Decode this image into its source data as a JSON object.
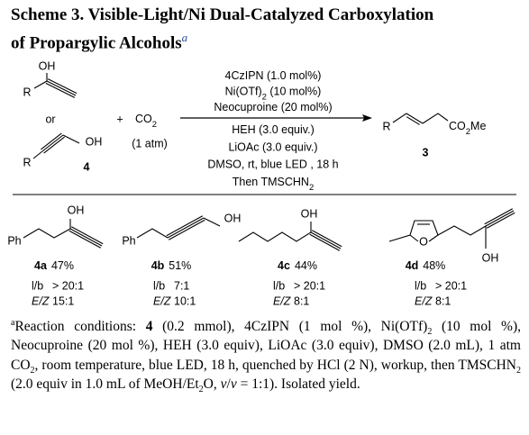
{
  "header": {
    "lines": [
      "Scheme 3. Visible-Light/Ni Dual-Catalyzed Carboxylation",
      "of Propargylic Alcohols"
    ],
    "note": "a"
  },
  "reaction": {
    "substrate_1": {
      "oh": "OH",
      "r": "R"
    },
    "or": "or",
    "substrate_2": {
      "oh": "OH",
      "r": "R",
      "label": "4"
    },
    "plus": "+",
    "co2": [
      "CO",
      {
        "text": "2",
        "style": "sub"
      }
    ],
    "pressure": "(1 atm)",
    "conditions_above": [
      [
        "4CzIPN (1.0 mol%)"
      ],
      [
        "Ni(OTf)",
        {
          "text": "2",
          "style": "sub"
        },
        " (10 mol%)"
      ],
      [
        "Neocuproine (20 mol%)"
      ]
    ],
    "conditions_below": [
      [
        "HEH (3.0 equiv.)"
      ],
      [
        "LiOAc (3.0 equiv.)"
      ],
      [
        "DMSO, rt, blue LED , 18 h"
      ],
      [
        "Then TMSCHN",
        {
          "text": "2",
          "style": "sub"
        }
      ]
    ],
    "product": {
      "r": "R",
      "ester": [
        "CO",
        {
          "text": "2",
          "style": "sub"
        },
        "Me"
      ],
      "label": "3"
    }
  },
  "products": [
    {
      "labels": [
        "OH",
        "Ph"
      ],
      "id": "4a",
      "yield": "47%",
      "lb_label": "l/b",
      "lb": "> 20:1",
      "ez_label": "E/Z",
      "ez": "15:1"
    },
    {
      "labels": [
        "Ph",
        "OH"
      ],
      "id": "4b",
      "yield": "51%",
      "lb_label": "l/b",
      "lb": "7:1",
      "ez_label": "E/Z",
      "ez": "10:1"
    },
    {
      "labels": [
        "OH"
      ],
      "id": "4c",
      "yield": "44%",
      "lb_label": "l/b",
      "lb": "> 20:1",
      "ez_label": "E/Z",
      "ez": "8:1"
    },
    {
      "labels": [
        "O",
        "OH"
      ],
      "id": "4d",
      "yield": "48%",
      "lb_label": "l/b",
      "lb": "> 20:1",
      "ez_label": "E/Z",
      "ez": "8:1"
    }
  ],
  "footnote": [
    {
      "text": "a",
      "style": "sup"
    },
    "Reaction conditions: ",
    {
      "text": "4",
      "style": "bold"
    },
    " (0.2 mmol), 4CzIPN (1 mol %), Ni(OTf)",
    {
      "text": "2",
      "style": "sub"
    },
    " (10 mol %), Neocuproine (20 mol %), HEH (3.0 equiv), LiOAc (3.0 equiv), DMSO (2.0 mL), 1 atm CO",
    {
      "text": "2",
      "style": "sub"
    },
    ", room temperature, blue LED, 18 h, quenched by HCl (2 N), workup, then TMSCHN",
    {
      "text": "2",
      "style": "sub"
    },
    " (2.0 equiv in 1.0 mL of MeOH/Et",
    {
      "text": "2",
      "style": "sub"
    },
    "O, ",
    {
      "text": "v",
      "style": "italic"
    },
    "/",
    {
      "text": "v",
      "style": "italic"
    },
    " = 1:1). Isolated yield."
  ]
}
